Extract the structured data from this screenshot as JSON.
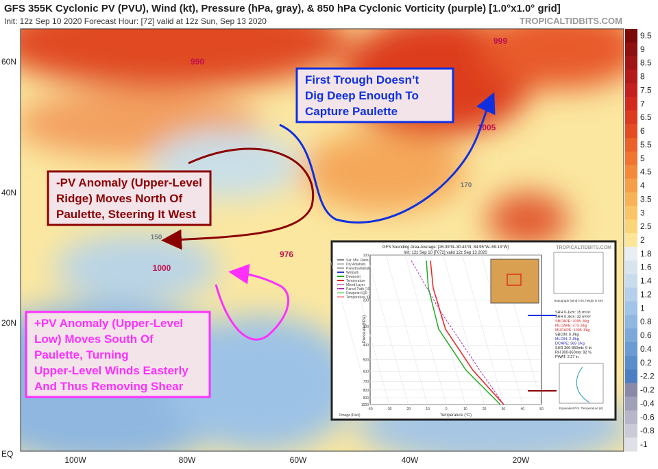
{
  "header": {
    "title": "GFS 355K Cyclonic PV (PVU), Wind (kt), Pressure (hPa, gray), & 850 hPa Cyclonic Vorticity (purple) [1.0°x1.0° grid]",
    "subtitle": "Init: 12z Sep 10 2020   Forecast Hour: [72]   valid at 12z Sun, Sep 13 2020",
    "brand": "TROPICALTIDBITS.COM"
  },
  "map": {
    "lat_labels": [
      "60N",
      "40N",
      "20N",
      "EQ"
    ],
    "lon_labels": [
      "100W",
      "80W",
      "60W",
      "40W",
      "20W"
    ],
    "pressure_labels": [
      "990",
      "999",
      "1005",
      "1000",
      "976",
      "150",
      "170"
    ],
    "colorbar_labels": [
      9.5,
      9,
      8.5,
      8,
      7.5,
      7,
      6.5,
      6,
      5.5,
      5,
      4.5,
      4,
      3.5,
      3,
      2.5,
      2,
      1.8,
      1.6,
      1.4,
      1.2,
      1,
      0.8,
      0.6,
      0.4,
      0.2,
      -2.2,
      -0.2,
      -0.4,
      -0.6,
      -0.8,
      -1
    ]
  },
  "annotations": [
    {
      "lines": [
        "First Trough Doesn’t",
        "Dig Deep Enough To",
        "Capture Paulette"
      ]
    },
    {
      "lines": [
        "-PV Anomaly (Upper-Level",
        "Ridge) Moves North Of",
        "Paulette, Steering It West"
      ]
    },
    {
      "lines": [
        "+PV Anomaly (Upper-Level",
        "Low) Moves South Of",
        "Paulette, Turning",
        "Upper-Level Winds Easterly",
        "And Thus Removing Shear"
      ]
    }
  ],
  "inset": {
    "title": "GFS Sounding Area-Average: [26.39°N–30.43°N, 84.95°W–59.13°W]",
    "subtitle": "Init: 12z Sep 10 [F072] valid 12z Sep 13 2020",
    "brand": "TROPICALTIDBITS.COM",
    "legend": [
      "Sat. Mix. Ratio",
      "Dry Adiabats",
      "Pseudoadiabats",
      "Wetbulb",
      "Dewpoint",
      "Temperature",
      "Mixed Layer",
      "Parcel Path (100mb)",
      "Dewpoint IQR",
      "Temperature IQR"
    ],
    "stats": [
      "SRH 0-1km:  15 m²/s²",
      "SRH 0-3km:  32 m²/s²",
      "SBCAPE:  1095 J/kg",
      "MLCAPE:  473 J/kg",
      "MUCAPE:  1095 J/kg",
      "SBCIN:  0 J/kg",
      "MLCIN:  2 J/kg",
      "DCAPE:  369 J/kg",
      "SHR 300-850mb:  6 kt",
      "RH 300-850mb:  92 %",
      "PWAT:  2.27 in"
    ],
    "pressure_ticks": [
      100,
      200,
      300,
      400,
      500,
      600,
      700,
      800,
      900,
      1000
    ],
    "temperature_ticks": [
      -40,
      -30,
      -20,
      -10,
      0,
      10,
      20,
      30,
      40,
      50
    ],
    "y_label": "Pressure (hPa)",
    "x_label": "Temperature (°C)",
    "omega_label": "Omega (Pa/s)",
    "hodograph_label": "Hodograph (wind in kt, height in km)",
    "profile_label": "Equivalent Pot. Temperature (K)"
  }
}
